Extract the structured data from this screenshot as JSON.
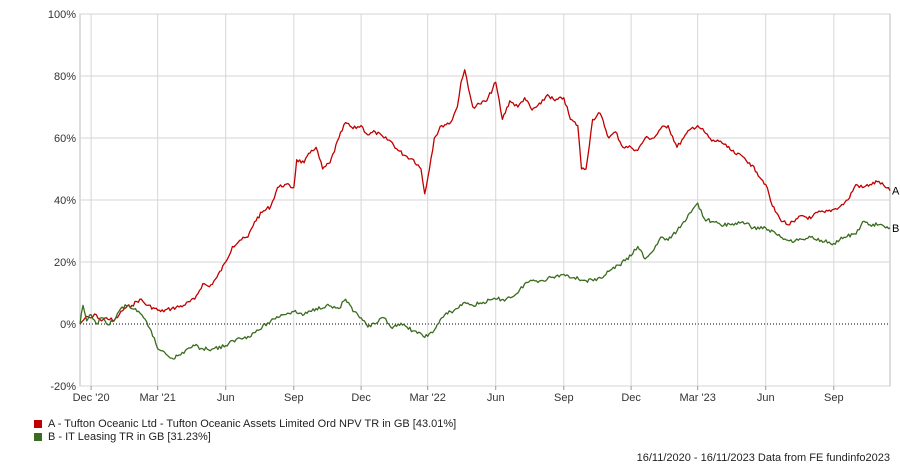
{
  "chart_data": {
    "type": "line",
    "yticks": [
      "-20%",
      "0%",
      "20%",
      "40%",
      "60%",
      "80%",
      "100%"
    ],
    "ylim": [
      -20,
      100
    ],
    "xticks": [
      {
        "label": "Dec '20",
        "date": "2020-12-01"
      },
      {
        "label": "Mar '21",
        "date": "2021-03-01"
      },
      {
        "label": "Jun",
        "date": "2021-06-01"
      },
      {
        "label": "Sep",
        "date": "2021-09-01"
      },
      {
        "label": "Dec",
        "date": "2021-12-01"
      },
      {
        "label": "Mar '22",
        "date": "2022-03-01"
      },
      {
        "label": "Jun",
        "date": "2022-06-01"
      },
      {
        "label": "Sep",
        "date": "2022-09-01"
      },
      {
        "label": "Dec",
        "date": "2022-12-01"
      },
      {
        "label": "Mar '23",
        "date": "2023-03-01"
      },
      {
        "label": "Jun",
        "date": "2023-06-01"
      },
      {
        "label": "Sep",
        "date": "2023-09-01"
      }
    ],
    "xlim": [
      "2020-11-16",
      "2023-11-16"
    ],
    "grid": true,
    "zero_line": "dotted",
    "series": [
      {
        "id": "A",
        "end_label": "A",
        "name": "A - Tufton Oceanic Ltd - Tufton Oceanic Assets Limited Ord NPV TR in GB [43.01%]",
        "color": "#c00000",
        "points": [
          [
            "2020-11-16",
            0
          ],
          [
            "2020-11-23",
            2
          ],
          [
            "2020-12-01",
            2
          ],
          [
            "2020-12-08",
            3
          ],
          [
            "2020-12-15",
            1
          ],
          [
            "2020-12-22",
            2
          ],
          [
            "2021-01-01",
            1
          ],
          [
            "2021-01-08",
            3
          ],
          [
            "2021-01-15",
            5
          ],
          [
            "2021-01-25",
            6
          ],
          [
            "2021-02-05",
            8
          ],
          [
            "2021-02-15",
            6
          ],
          [
            "2021-02-25",
            5
          ],
          [
            "2021-03-05",
            4
          ],
          [
            "2021-03-20",
            5
          ],
          [
            "2021-04-05",
            6
          ],
          [
            "2021-04-20",
            8
          ],
          [
            "2021-05-01",
            13
          ],
          [
            "2021-05-10",
            12
          ],
          [
            "2021-05-20",
            15
          ],
          [
            "2021-06-01",
            20
          ],
          [
            "2021-06-10",
            25
          ],
          [
            "2021-06-20",
            27
          ],
          [
            "2021-07-01",
            28
          ],
          [
            "2021-07-10",
            33
          ],
          [
            "2021-07-20",
            36
          ],
          [
            "2021-08-01",
            38
          ],
          [
            "2021-08-10",
            44
          ],
          [
            "2021-08-20",
            45
          ],
          [
            "2021-09-01",
            44
          ],
          [
            "2021-09-05",
            53
          ],
          [
            "2021-09-15",
            52
          ],
          [
            "2021-09-25",
            56
          ],
          [
            "2021-10-01",
            57
          ],
          [
            "2021-10-10",
            50
          ],
          [
            "2021-10-20",
            52
          ],
          [
            "2021-11-01",
            60
          ],
          [
            "2021-11-10",
            65
          ],
          [
            "2021-11-20",
            63
          ],
          [
            "2021-12-01",
            64
          ],
          [
            "2021-12-10",
            61
          ],
          [
            "2021-12-20",
            62
          ],
          [
            "2022-01-01",
            60
          ],
          [
            "2022-01-10",
            59
          ],
          [
            "2022-01-20",
            56
          ],
          [
            "2022-02-01",
            54
          ],
          [
            "2022-02-10",
            53
          ],
          [
            "2022-02-20",
            50
          ],
          [
            "2022-02-25",
            42
          ],
          [
            "2022-03-01",
            47
          ],
          [
            "2022-03-10",
            60
          ],
          [
            "2022-03-20",
            64
          ],
          [
            "2022-04-01",
            65
          ],
          [
            "2022-04-10",
            70
          ],
          [
            "2022-04-15",
            78
          ],
          [
            "2022-04-20",
            82
          ],
          [
            "2022-04-25",
            76
          ],
          [
            "2022-05-01",
            70
          ],
          [
            "2022-05-10",
            71
          ],
          [
            "2022-05-20",
            72
          ],
          [
            "2022-06-01",
            78
          ],
          [
            "2022-06-10",
            66
          ],
          [
            "2022-06-20",
            72
          ],
          [
            "2022-07-01",
            70
          ],
          [
            "2022-07-10",
            73
          ],
          [
            "2022-07-20",
            69
          ],
          [
            "2022-08-01",
            71
          ],
          [
            "2022-08-10",
            74
          ],
          [
            "2022-08-20",
            72
          ],
          [
            "2022-09-01",
            73
          ],
          [
            "2022-09-10",
            66
          ],
          [
            "2022-09-20",
            64
          ],
          [
            "2022-09-25",
            50
          ],
          [
            "2022-10-01",
            50
          ],
          [
            "2022-10-10",
            66
          ],
          [
            "2022-10-20",
            68
          ],
          [
            "2022-11-01",
            60
          ],
          [
            "2022-11-10",
            62
          ],
          [
            "2022-11-20",
            57
          ],
          [
            "2022-12-01",
            57
          ],
          [
            "2022-12-10",
            56
          ],
          [
            "2022-12-20",
            60
          ],
          [
            "2023-01-01",
            60
          ],
          [
            "2023-01-10",
            63
          ],
          [
            "2023-01-20",
            64
          ],
          [
            "2023-02-01",
            57
          ],
          [
            "2023-02-10",
            60
          ],
          [
            "2023-02-20",
            63
          ],
          [
            "2023-03-01",
            64
          ],
          [
            "2023-03-10",
            62
          ],
          [
            "2023-03-20",
            59
          ],
          [
            "2023-04-01",
            59
          ],
          [
            "2023-04-10",
            57
          ],
          [
            "2023-04-20",
            55
          ],
          [
            "2023-05-01",
            54
          ],
          [
            "2023-05-10",
            52
          ],
          [
            "2023-05-20",
            49
          ],
          [
            "2023-06-01",
            45
          ],
          [
            "2023-06-10",
            38
          ],
          [
            "2023-06-20",
            34
          ],
          [
            "2023-07-01",
            32
          ],
          [
            "2023-07-10",
            33
          ],
          [
            "2023-07-20",
            35
          ],
          [
            "2023-08-01",
            34
          ],
          [
            "2023-08-10",
            36
          ],
          [
            "2023-08-20",
            36
          ],
          [
            "2023-09-01",
            37
          ],
          [
            "2023-09-10",
            38
          ],
          [
            "2023-09-20",
            40
          ],
          [
            "2023-10-01",
            45
          ],
          [
            "2023-10-10",
            44
          ],
          [
            "2023-10-20",
            45
          ],
          [
            "2023-11-01",
            46
          ],
          [
            "2023-11-10",
            44
          ],
          [
            "2023-11-16",
            43
          ]
        ]
      },
      {
        "id": "B",
        "end_label": "B",
        "name": "B - IT Leasing TR in GB [31.23%]",
        "color": "#3a6b1e",
        "points": [
          [
            "2020-11-16",
            0
          ],
          [
            "2020-11-20",
            6
          ],
          [
            "2020-11-25",
            1
          ],
          [
            "2020-12-01",
            3
          ],
          [
            "2020-12-08",
            0
          ],
          [
            "2020-12-15",
            2
          ],
          [
            "2020-12-22",
            0
          ],
          [
            "2021-01-01",
            1
          ],
          [
            "2021-01-10",
            5
          ],
          [
            "2021-01-20",
            6
          ],
          [
            "2021-02-01",
            4
          ],
          [
            "2021-02-10",
            2
          ],
          [
            "2021-02-20",
            -2
          ],
          [
            "2021-03-01",
            -8
          ],
          [
            "2021-03-10",
            -9
          ],
          [
            "2021-03-20",
            -11
          ],
          [
            "2021-04-01",
            -10
          ],
          [
            "2021-04-10",
            -8
          ],
          [
            "2021-04-20",
            -7
          ],
          [
            "2021-05-01",
            -8
          ],
          [
            "2021-05-15",
            -8
          ],
          [
            "2021-06-01",
            -7
          ],
          [
            "2021-06-15",
            -5
          ],
          [
            "2021-07-01",
            -4
          ],
          [
            "2021-07-15",
            -2
          ],
          [
            "2021-08-01",
            1
          ],
          [
            "2021-08-15",
            3
          ],
          [
            "2021-09-01",
            4
          ],
          [
            "2021-09-15",
            3
          ],
          [
            "2021-10-01",
            5
          ],
          [
            "2021-10-15",
            6
          ],
          [
            "2021-11-01",
            5
          ],
          [
            "2021-11-10",
            8
          ],
          [
            "2021-11-20",
            4
          ],
          [
            "2021-12-01",
            2
          ],
          [
            "2021-12-10",
            -1
          ],
          [
            "2021-12-20",
            0
          ],
          [
            "2022-01-01",
            2
          ],
          [
            "2022-01-10",
            -1
          ],
          [
            "2022-01-20",
            0
          ],
          [
            "2022-02-01",
            -1
          ],
          [
            "2022-02-15",
            -3
          ],
          [
            "2022-03-01",
            -4
          ],
          [
            "2022-03-10",
            -2
          ],
          [
            "2022-03-20",
            2
          ],
          [
            "2022-04-01",
            4
          ],
          [
            "2022-04-10",
            5
          ],
          [
            "2022-04-20",
            7
          ],
          [
            "2022-05-01",
            6
          ],
          [
            "2022-05-15",
            7
          ],
          [
            "2022-06-01",
            8
          ],
          [
            "2022-06-15",
            8
          ],
          [
            "2022-07-01",
            10
          ],
          [
            "2022-07-10",
            13
          ],
          [
            "2022-07-20",
            14
          ],
          [
            "2022-08-01",
            14
          ],
          [
            "2022-08-15",
            15
          ],
          [
            "2022-09-01",
            16
          ],
          [
            "2022-09-15",
            15
          ],
          [
            "2022-10-01",
            14
          ],
          [
            "2022-10-15",
            14
          ],
          [
            "2022-11-01",
            17
          ],
          [
            "2022-11-15",
            19
          ],
          [
            "2022-12-01",
            22
          ],
          [
            "2022-12-10",
            25
          ],
          [
            "2022-12-20",
            21
          ],
          [
            "2023-01-01",
            24
          ],
          [
            "2023-01-10",
            28
          ],
          [
            "2023-01-20",
            27
          ],
          [
            "2023-02-01",
            30
          ],
          [
            "2023-02-10",
            33
          ],
          [
            "2023-02-20",
            36
          ],
          [
            "2023-03-01",
            39
          ],
          [
            "2023-03-10",
            34
          ],
          [
            "2023-03-20",
            33
          ],
          [
            "2023-04-01",
            32
          ],
          [
            "2023-04-15",
            32
          ],
          [
            "2023-05-01",
            33
          ],
          [
            "2023-05-15",
            31
          ],
          [
            "2023-06-01",
            31
          ],
          [
            "2023-06-15",
            29
          ],
          [
            "2023-07-01",
            27
          ],
          [
            "2023-07-15",
            27
          ],
          [
            "2023-08-01",
            28
          ],
          [
            "2023-08-15",
            27
          ],
          [
            "2023-09-01",
            26
          ],
          [
            "2023-09-15",
            28
          ],
          [
            "2023-10-01",
            29
          ],
          [
            "2023-10-10",
            33
          ],
          [
            "2023-10-20",
            32
          ],
          [
            "2023-11-01",
            32
          ],
          [
            "2023-11-10",
            31
          ],
          [
            "2023-11-16",
            31
          ]
        ]
      }
    ]
  },
  "footer": "16/11/2020 - 16/11/2023 Data from FE fundinfo2023"
}
